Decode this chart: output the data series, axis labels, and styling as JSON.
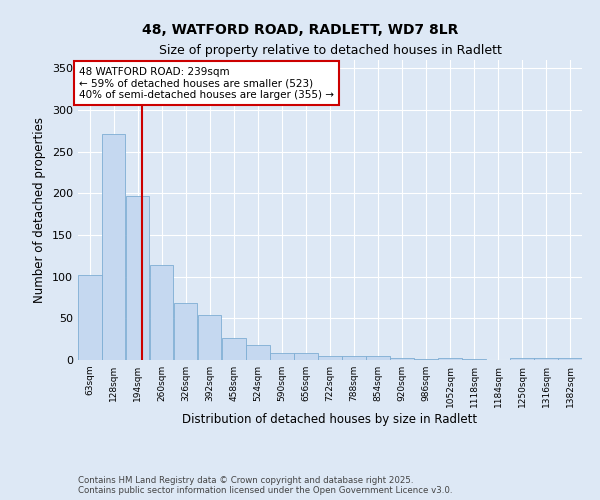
{
  "title1": "48, WATFORD ROAD, RADLETT, WD7 8LR",
  "title2": "Size of property relative to detached houses in Radlett",
  "xlabel": "Distribution of detached houses by size in Radlett",
  "ylabel": "Number of detached properties",
  "annotation_line1": "48 WATFORD ROAD: 239sqm",
  "annotation_line2": "← 59% of detached houses are smaller (523)",
  "annotation_line3": "40% of semi-detached houses are larger (355) →",
  "property_sqm": 239,
  "bins": [
    63,
    128,
    194,
    260,
    326,
    392,
    458,
    524,
    590,
    656,
    722,
    788,
    854,
    920,
    986,
    1052,
    1118,
    1184,
    1250,
    1316,
    1382
  ],
  "counts": [
    102,
    271,
    197,
    114,
    68,
    54,
    26,
    18,
    9,
    8,
    5,
    5,
    5,
    3,
    1,
    2,
    1,
    0,
    2,
    3,
    2
  ],
  "bar_color": "#c5d8f0",
  "bar_edge_color": "#7eadd4",
  "vline_color": "#cc0000",
  "vline_x": 239,
  "ylim": [
    0,
    360
  ],
  "yticks": [
    0,
    50,
    100,
    150,
    200,
    250,
    300,
    350
  ],
  "bg_color": "#dde8f5",
  "fig_bg_color": "#dde8f5",
  "footer": "Contains HM Land Registry data © Crown copyright and database right 2025.\nContains public sector information licensed under the Open Government Licence v3.0.",
  "annotation_box_color": "#cc0000",
  "annotation_text_color": "#000000"
}
